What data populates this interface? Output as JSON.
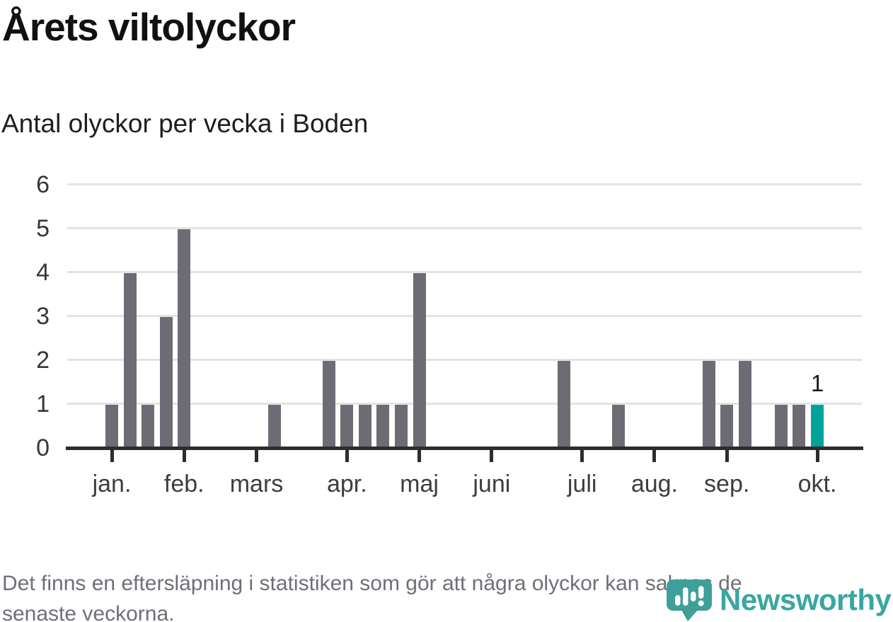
{
  "header": {
    "title": "Årets viltolyckor",
    "subtitle": "Antal olyckor per vecka i Boden"
  },
  "chart_data": {
    "type": "bar",
    "title": "Årets viltolyckor",
    "subtitle": "Antal olyckor per vecka i Boden",
    "x_unit": "week",
    "values": [
      1,
      4,
      1,
      3,
      5,
      0,
      0,
      0,
      0,
      1,
      0,
      0,
      2,
      1,
      1,
      1,
      1,
      4,
      0,
      0,
      0,
      0,
      0,
      0,
      0,
      2,
      0,
      0,
      1,
      0,
      0,
      0,
      0,
      2,
      1,
      2,
      0,
      1,
      1,
      1
    ],
    "highlight_index": 39,
    "highlight_value_label": "1",
    "month_ticks": [
      {
        "label": "jan.",
        "week": 0
      },
      {
        "label": "feb.",
        "week": 4
      },
      {
        "label": "mars",
        "week": 8
      },
      {
        "label": "apr.",
        "week": 13
      },
      {
        "label": "maj",
        "week": 17
      },
      {
        "label": "juni",
        "week": 21
      },
      {
        "label": "juli",
        "week": 26
      },
      {
        "label": "aug.",
        "week": 30
      },
      {
        "label": "sep.",
        "week": 34
      },
      {
        "label": "okt.",
        "week": 39
      }
    ],
    "y_ticks": [
      0,
      1,
      2,
      3,
      4,
      5,
      6
    ],
    "ylim": [
      0,
      6
    ],
    "grid": true,
    "legend": "none"
  },
  "colors": {
    "bar": "#6f6b74",
    "highlight": "#00a49b",
    "grid": "#e3e3e3",
    "axis": "#2d2d2d",
    "brand_teal": "#38a7a0",
    "icon_teal": "#3f9f99",
    "icon_teal_dark": "#2e8c86"
  },
  "footer": {
    "note_lines": [
      "Det finns en eftersläpning i statistiken som gör att några olyckor kan saknas de",
      "senaste veckorna."
    ]
  },
  "logo": {
    "wordmark": "Newsworthy",
    "icon": "newsworthy-speech-bubble-bar-chart-icon"
  }
}
